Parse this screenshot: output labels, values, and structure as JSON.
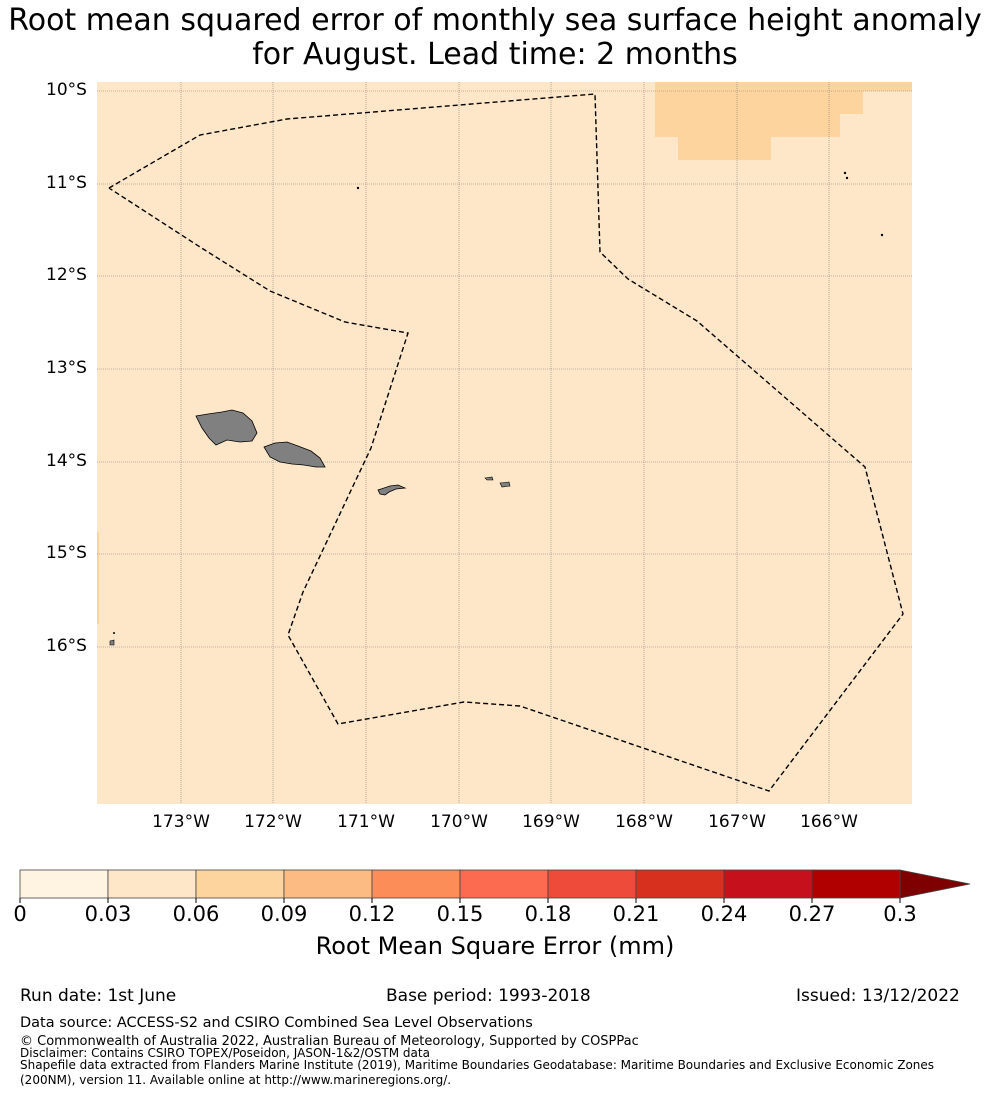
{
  "title": {
    "line1": "Root mean squared error of monthly sea surface height anomaly",
    "line2": "for August. Lead time: 2 months"
  },
  "map": {
    "lat_labels": [
      "10°S",
      "11°S",
      "12°S",
      "13°S",
      "14°S",
      "15°S",
      "16°S"
    ],
    "lon_labels": [
      "173°W",
      "172°W",
      "171°W",
      "170°W",
      "169°W",
      "168°W",
      "167°W",
      "166°W"
    ],
    "background_color": "#fee6c8",
    "higher_error_patch_color": "#fdd49e",
    "land_color": "#808080",
    "eez_boundary_style": "dashed black"
  },
  "colorbar": {
    "ticks": [
      "0",
      "0.03",
      "0.06",
      "0.09",
      "0.12",
      "0.15",
      "0.18",
      "0.21",
      "0.24",
      "0.27",
      "0.3"
    ],
    "colors": [
      "#fff3e2",
      "#fee6c8",
      "#fdd49e",
      "#fdbb84",
      "#fc8d59",
      "#fc6a50",
      "#ef4b3b",
      "#d7301f",
      "#c6101b",
      "#b00000"
    ],
    "extend_color": "#7f0000",
    "label": "Root Mean Square Error (mm)"
  },
  "footer": {
    "run_date": "Run date: 1st June",
    "base_period": "Base period: 1993-2018",
    "issued": "Issued: 13/12/2022",
    "data_source": "Data source: ACCESS-S2 and CSIRO Combined Sea Level Observations",
    "copyright": "© Commonwealth of Australia 2022, Australian Bureau of Meteorology, Supported by COSPPac",
    "disclaimer": "Disclaimer: Contains CSIRO TOPEX/Poseidon, JASON-1&2/OSTM data",
    "shapefile1": "Shapefile data extracted from Flanders Marine Institute (2019), Maritime Boundaries Geodatabase: Maritime Boundaries and Exclusive Economic Zones",
    "shapefile2": "(200NM), version 11. Available online at http://www.marineregions.org/."
  }
}
